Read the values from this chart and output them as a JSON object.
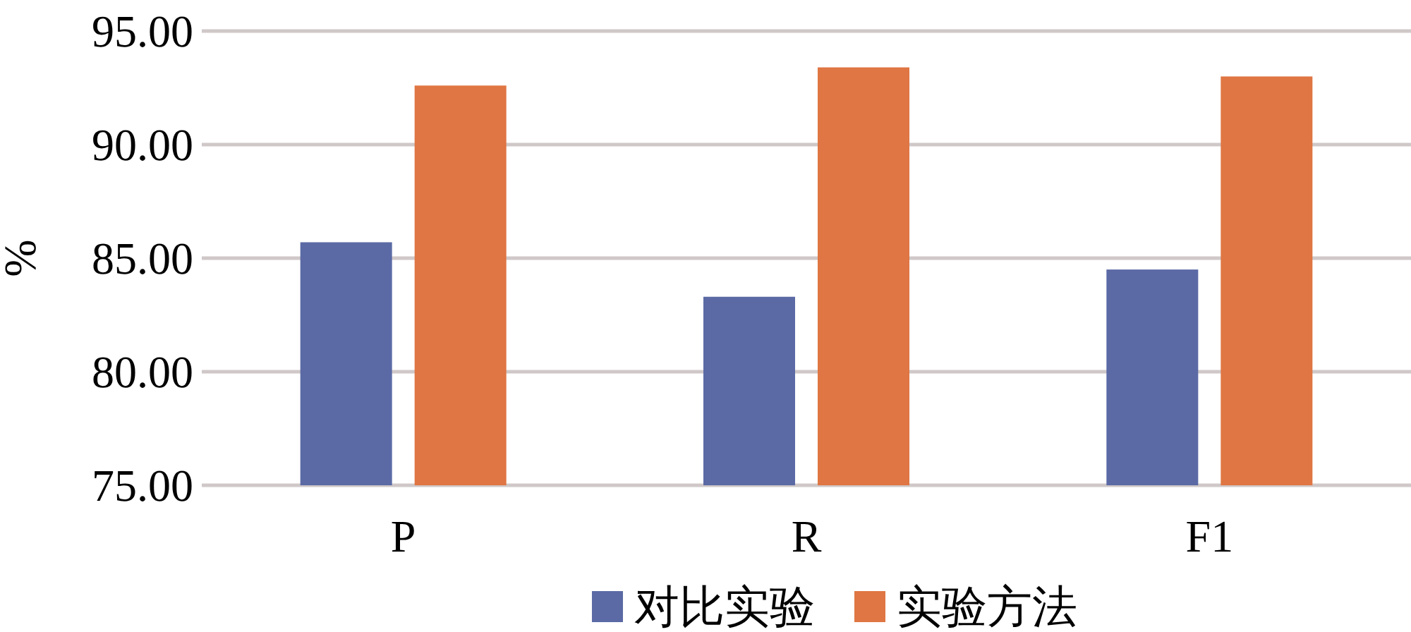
{
  "chart_data": {
    "type": "bar",
    "ylabel": "%",
    "categories": [
      "P",
      "R",
      "F1"
    ],
    "series": [
      {
        "name": "对比实验",
        "color": "#5b6aa5",
        "values": [
          85.7,
          83.3,
          84.5
        ]
      },
      {
        "name": "实验方法",
        "color": "#df7643",
        "values": [
          92.6,
          93.4,
          93.0
        ]
      }
    ],
    "ylim": [
      75,
      95
    ],
    "yticks": [
      {
        "value": 75,
        "label": "75.00"
      },
      {
        "value": 80,
        "label": "80.00"
      },
      {
        "value": 85,
        "label": "85.00"
      },
      {
        "value": 90,
        "label": "90.00"
      },
      {
        "value": 95,
        "label": "95.00"
      }
    ],
    "grid": "y",
    "legend": "bottom"
  }
}
